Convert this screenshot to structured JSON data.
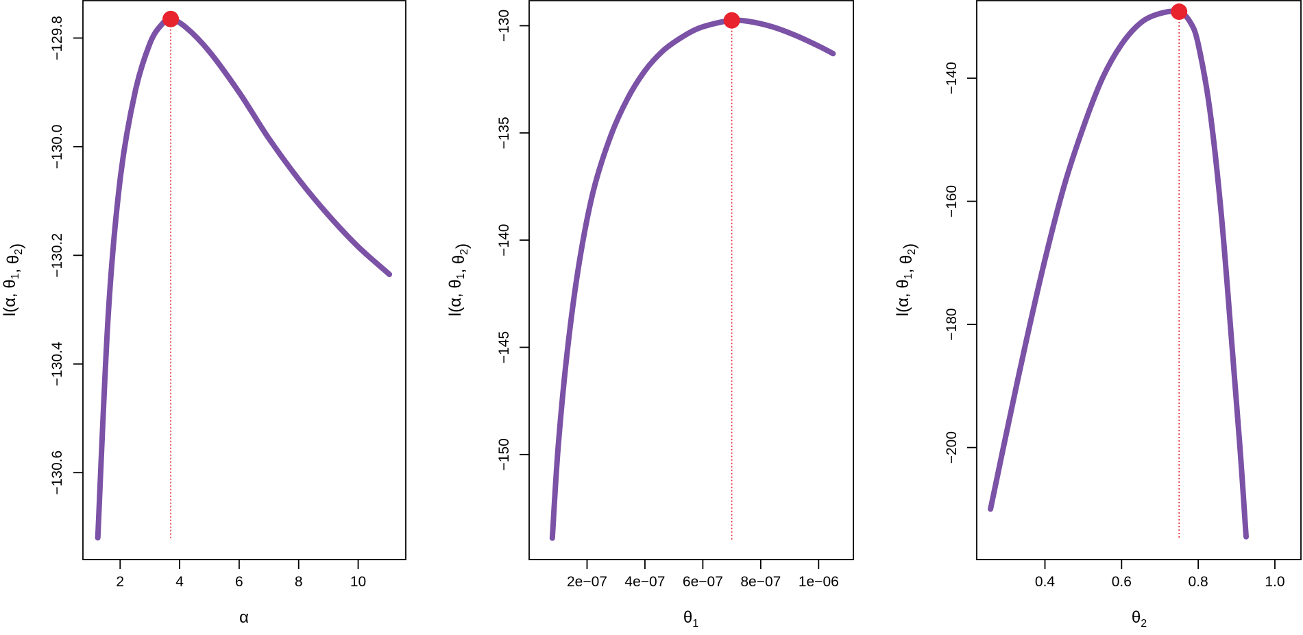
{
  "colors": {
    "curve": "#7b52a6",
    "peak": "#e8232d",
    "vline": "#e8232d"
  },
  "chart_data": [
    {
      "type": "line",
      "ylabel_base": "l(α, θ",
      "ylabel_sub1": "1",
      "ylabel_mid": ", θ",
      "ylabel_sub2": "2",
      "ylabel_end": ")",
      "xlabel_main": "α",
      "xlabel_sub": "",
      "xlim": [
        0.75,
        11.6
      ],
      "ylim": [
        -130.76,
        -129.73
      ],
      "xticks": [
        2,
        4,
        6,
        8,
        10
      ],
      "xtick_labels": [
        "2",
        "4",
        "6",
        "8",
        "10"
      ],
      "yticks": [
        -129.8,
        -130.0,
        -130.2,
        -130.4,
        -130.6
      ],
      "ytick_labels": [
        "−129.8",
        "−130.0",
        "−130.2",
        "−130.4",
        "−130.6"
      ],
      "x": [
        1.25,
        1.6,
        2.0,
        2.5,
        3.0,
        3.4,
        3.7,
        4.2,
        5.0,
        6.0,
        7.0,
        8.0,
        9.0,
        10.0,
        11.05
      ],
      "y": [
        -130.72,
        -130.31,
        -130.06,
        -129.9,
        -129.81,
        -129.775,
        -129.765,
        -129.78,
        -129.825,
        -129.9,
        -129.985,
        -130.06,
        -130.126,
        -130.184,
        -130.235
      ],
      "peak": {
        "x": 3.7,
        "y": -129.765
      }
    },
    {
      "type": "line",
      "ylabel_base": "l(α, θ",
      "ylabel_sub1": "1",
      "ylabel_mid": ", θ",
      "ylabel_sub2": "2",
      "ylabel_end": ")",
      "xlabel_main": "θ",
      "xlabel_sub": "1",
      "xlim": [
        0.0,
        1.12e-06
      ],
      "ylim": [
        -154.9,
        -128.8
      ],
      "xticks": [
        2e-07,
        4e-07,
        6e-07,
        8e-07,
        1e-06
      ],
      "xtick_labels": [
        "2e−07",
        "4e−07",
        "6e−07",
        "8e−07",
        "1e−06"
      ],
      "yticks": [
        -130,
        -135,
        -140,
        -145,
        -150
      ],
      "ytick_labels": [
        "−130",
        "−135",
        "−140",
        "−145",
        "−150"
      ],
      "x": [
        8e-08,
        1e-07,
        1.3e-07,
        1.7e-07,
        2.2e-07,
        2.8e-07,
        3.4e-07,
        4e-07,
        4.6e-07,
        5.2e-07,
        5.8e-07,
        6.4e-07,
        7e-07,
        7.6e-07,
        8.4e-07,
        9.2e-07,
        1e-06,
        1.05e-06
      ],
      "y": [
        -153.9,
        -149.7,
        -145.4,
        -141.3,
        -137.8,
        -135.2,
        -133.4,
        -132.1,
        -131.2,
        -130.6,
        -130.15,
        -129.9,
        -129.75,
        -129.8,
        -130.05,
        -130.45,
        -130.95,
        -131.3
      ],
      "peak": {
        "x": 7e-07,
        "y": -129.75
      }
    },
    {
      "type": "line",
      "ylabel_base": "l(α, θ",
      "ylabel_sub1": "1",
      "ylabel_mid": ", θ",
      "ylabel_sub2": "2",
      "ylabel_end": ")",
      "xlabel_main": "θ",
      "xlabel_sub": "2",
      "xlim": [
        0.222,
        1.068
      ],
      "ylim": [
        -218.2,
        -127.3
      ],
      "xticks": [
        0.4,
        0.6,
        0.8,
        1.0
      ],
      "xtick_labels": [
        "0.4",
        "0.6",
        "0.8",
        "1.0"
      ],
      "yticks": [
        -140,
        -160,
        -180,
        -200
      ],
      "ytick_labels": [
        "−140",
        "−160",
        "−180",
        "−200"
      ],
      "x": [
        0.258,
        0.3,
        0.35,
        0.4,
        0.45,
        0.5,
        0.55,
        0.6,
        0.65,
        0.7,
        0.75,
        0.78,
        0.8,
        0.83,
        0.86,
        0.89,
        0.91,
        0.925
      ],
      "y": [
        -210.0,
        -197.5,
        -183.0,
        -169.5,
        -157.5,
        -148.0,
        -140.0,
        -134.5,
        -131.0,
        -129.5,
        -129.2,
        -131.0,
        -134.5,
        -145.0,
        -162.0,
        -185.0,
        -201.0,
        -214.5
      ],
      "peak": {
        "x": 0.75,
        "y": -129.2
      }
    }
  ]
}
